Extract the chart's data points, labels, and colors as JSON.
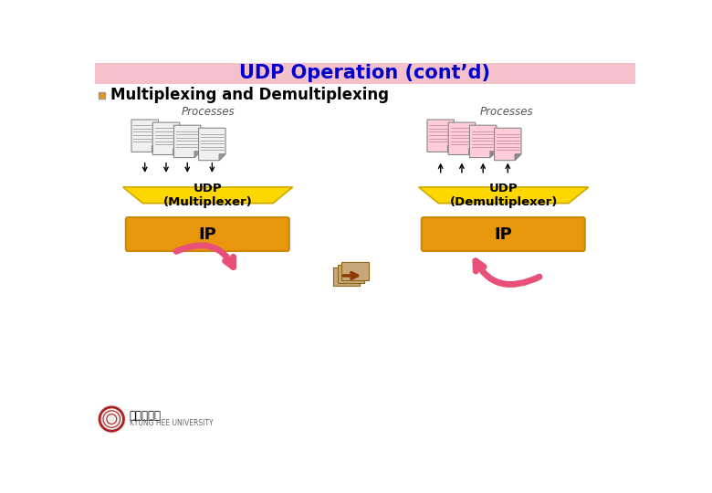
{
  "title": "UDP Operation (cont’d)",
  "title_color": "#0000CC",
  "title_bg": "#F4C0CC",
  "subtitle": "Multiplexing and Demultiplexing",
  "bg_color": "#FFFFFF",
  "udp_color": "#FFD700",
  "ip_color": "#E8960C",
  "arrow_color": "#E8507A",
  "processes_label": "Processes",
  "udp_mux_label": "UDP\n(Multiplexer)",
  "udp_demux_label": "UDP\n(Demultiplexer)",
  "ip_label": "IP",
  "doc_line_gray": "#AAAAAA",
  "doc_line_pink": "#CC99AA",
  "doc_fold_color": "#888888"
}
